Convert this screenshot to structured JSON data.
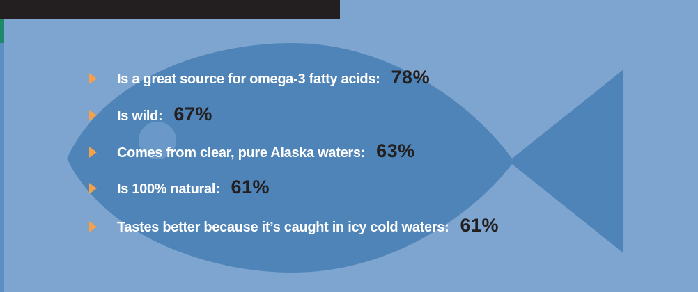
{
  "items": [
    {
      "text": "Is a great source for omega-3 fatty acids:",
      "value": "78%"
    },
    {
      "text": "Is wild:",
      "value": "67%"
    },
    {
      "text": "Comes from clear, pure Alaska waters:",
      "value": "63%"
    },
    {
      "text": "Is 100% natural:",
      "value": "61%"
    },
    {
      "text": "Tastes better because it’s caught in icy cold waters:",
      "value": "61%"
    }
  ]
}
